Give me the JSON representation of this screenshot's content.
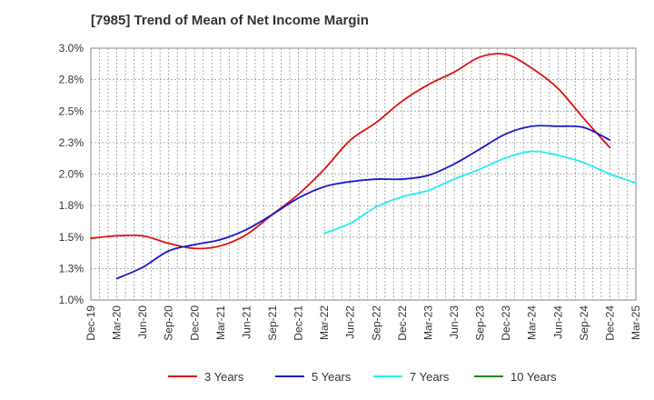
{
  "chart_data": {
    "type": "line",
    "title": "[7985]  Trend of Mean of Net Income Margin",
    "xlabel": "",
    "ylabel": "",
    "ylim": [
      1.0,
      3.0
    ],
    "y_ticks": [
      "1.0%",
      "1.3%",
      "1.5%",
      "1.8%",
      "2.0%",
      "2.3%",
      "2.5%",
      "2.8%",
      "3.0%"
    ],
    "y_tick_values": [
      1.0,
      1.25,
      1.5,
      1.75,
      2.0,
      2.25,
      2.5,
      2.75,
      3.0
    ],
    "x_ticks": [
      "Dec-19",
      "Mar-20",
      "Jun-20",
      "Sep-20",
      "Dec-20",
      "Mar-21",
      "Jun-21",
      "Sep-21",
      "Dec-21",
      "Mar-22",
      "Jun-22",
      "Sep-22",
      "Dec-22",
      "Mar-23",
      "Jun-23",
      "Sep-23",
      "Dec-23",
      "Mar-24",
      "Jun-24",
      "Sep-24",
      "Dec-24",
      "Mar-25"
    ],
    "grid": true,
    "legend_position": "bottom",
    "series": [
      {
        "name": "3 Years",
        "color": "#dd1111",
        "start_index": 0,
        "values": [
          1.49,
          1.51,
          1.51,
          1.45,
          1.41,
          1.43,
          1.52,
          1.68,
          1.84,
          2.04,
          2.27,
          2.41,
          2.58,
          2.71,
          2.81,
          2.93,
          2.95,
          2.84,
          2.68,
          2.44,
          2.21
        ]
      },
      {
        "name": "5 Years",
        "color": "#1a1acc",
        "start_index": 1,
        "values": [
          1.17,
          1.26,
          1.39,
          1.44,
          1.48,
          1.56,
          1.68,
          1.81,
          1.9,
          1.94,
          1.96,
          1.96,
          1.99,
          2.08,
          2.2,
          2.32,
          2.38,
          2.38,
          2.37,
          2.27
        ]
      },
      {
        "name": "7 Years",
        "color": "#22eeee",
        "start_index": 9,
        "values": [
          1.53,
          1.61,
          1.74,
          1.82,
          1.87,
          1.96,
          2.04,
          2.13,
          2.18,
          2.15,
          2.09,
          2.0,
          1.93
        ]
      },
      {
        "name": "10 Years",
        "color": "#228822",
        "start_index": 0,
        "values": []
      }
    ]
  }
}
